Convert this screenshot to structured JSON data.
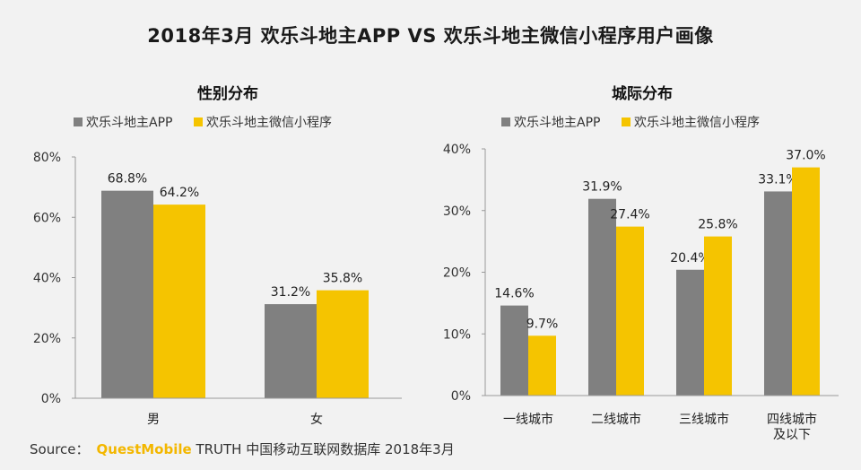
{
  "title": "2018年3月 欢乐斗地主APP VS 欢乐斗地主微信小程序用户画像",
  "source": {
    "prefix": "Source：",
    "brand": "QuestMobile",
    "rest": " TRUTH 中国移动互联网数据库 2018年3月"
  },
  "colors": {
    "app": "#808080",
    "mini": "#f5c400",
    "axis": "#999999"
  },
  "chart_data": [
    {
      "type": "bar",
      "title": "性别分布",
      "categories": [
        [
          "男"
        ],
        [
          "女"
        ]
      ],
      "series": [
        {
          "name": "欢乐斗地主APP",
          "values": [
            68.8,
            31.2
          ],
          "labels": [
            "68.8%",
            "31.2%"
          ]
        },
        {
          "name": "欢乐斗地主微信小程序",
          "values": [
            64.2,
            35.8
          ],
          "labels": [
            "64.2%",
            "35.8%"
          ]
        }
      ],
      "ylim": [
        0,
        80
      ],
      "yticks": [
        0,
        20,
        40,
        60,
        80
      ],
      "ytick_labels": [
        "0%",
        "20%",
        "40%",
        "60%",
        "80%"
      ],
      "legend": "top-left"
    },
    {
      "type": "bar",
      "title": "城际分布",
      "categories": [
        [
          "一线城市"
        ],
        [
          "二线城市"
        ],
        [
          "三线城市"
        ],
        [
          "四线城市",
          "及以下"
        ]
      ],
      "series": [
        {
          "name": "欢乐斗地主APP",
          "values": [
            14.6,
            31.9,
            20.4,
            33.1
          ],
          "labels": [
            "14.6%",
            "31.9%",
            "20.4%",
            "33.1%"
          ]
        },
        {
          "name": "欢乐斗地主微信小程序",
          "values": [
            9.7,
            27.4,
            25.8,
            37.0
          ],
          "labels": [
            "9.7%",
            "27.4%",
            "25.8%",
            "37.0%"
          ]
        }
      ],
      "ylim": [
        0,
        40
      ],
      "yticks": [
        0,
        10,
        20,
        30,
        40
      ],
      "ytick_labels": [
        "0%",
        "10%",
        "20%",
        "30%",
        "40%"
      ],
      "legend": "top-left"
    }
  ]
}
